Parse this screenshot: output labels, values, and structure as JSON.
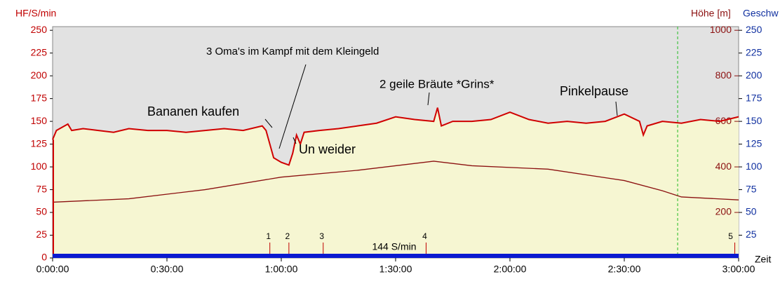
{
  "chart_data": {
    "type": "line",
    "y_label": "HF/S/min",
    "y2_label": "Höhe [m]",
    "y3_label": "Geschw",
    "x_label": "Zeit",
    "xlim": [
      0,
      180
    ],
    "xticks": [
      {
        "value": 0,
        "label": "0:00:00"
      },
      {
        "value": 30,
        "label": "0:30:00"
      },
      {
        "value": 60,
        "label": "1:00:00"
      },
      {
        "value": 90,
        "label": "1:30:00"
      },
      {
        "value": 120,
        "label": "2:00:00"
      },
      {
        "value": 150,
        "label": "2:30:00"
      },
      {
        "value": 180,
        "label": "3:00:00"
      }
    ],
    "ylim": [
      0,
      254
    ],
    "yticks": [
      0,
      25,
      50,
      75,
      100,
      125,
      150,
      175,
      200,
      225,
      250
    ],
    "y2lim": [
      0,
      1016
    ],
    "y2ticks": [
      200,
      400,
      600,
      800,
      1000
    ],
    "y3ticks": [
      25,
      50,
      75,
      100,
      125,
      150,
      175,
      200,
      225,
      250
    ],
    "series": [
      {
        "name": "HF",
        "color": "#d00000",
        "x": [
          0,
          1,
          4,
          5,
          8,
          12,
          16,
          20,
          25,
          30,
          35,
          40,
          45,
          50,
          55,
          56,
          57,
          58,
          60,
          62,
          63,
          64,
          65,
          66,
          70,
          75,
          80,
          85,
          90,
          95,
          100,
          101,
          102,
          105,
          110,
          115,
          120,
          125,
          130,
          135,
          140,
          145,
          150,
          154,
          155,
          156,
          160,
          165,
          170,
          175,
          180
        ],
        "values": [
          130,
          140,
          147,
          140,
          142,
          140,
          138,
          142,
          140,
          140,
          138,
          140,
          142,
          140,
          145,
          140,
          125,
          110,
          105,
          102,
          115,
          135,
          125,
          138,
          140,
          142,
          145,
          148,
          155,
          152,
          150,
          165,
          145,
          150,
          150,
          152,
          160,
          152,
          148,
          150,
          148,
          150,
          158,
          150,
          135,
          145,
          150,
          148,
          152,
          150,
          155
        ]
      },
      {
        "name": "Höhe",
        "color": "#8b1010",
        "axis": "y2",
        "x": [
          0,
          20,
          40,
          60,
          80,
          100,
          110,
          130,
          150,
          160,
          165,
          180
        ],
        "values": [
          245,
          260,
          300,
          355,
          385,
          425,
          405,
          390,
          340,
          295,
          268,
          255
        ]
      }
    ],
    "annotations": [
      "Bananen kaufen",
      "3 Oma's im Kampf mit dem Kleingeld",
      "Un weider",
      "2 geile Bräute *Grins*",
      "Pinkelpause"
    ],
    "markers": {
      "x": [
        57,
        62,
        71,
        98,
        179
      ],
      "labels": [
        "1",
        "2",
        "3",
        "4",
        "5"
      ]
    },
    "marker_note": "144 S/min",
    "vline": 164
  }
}
